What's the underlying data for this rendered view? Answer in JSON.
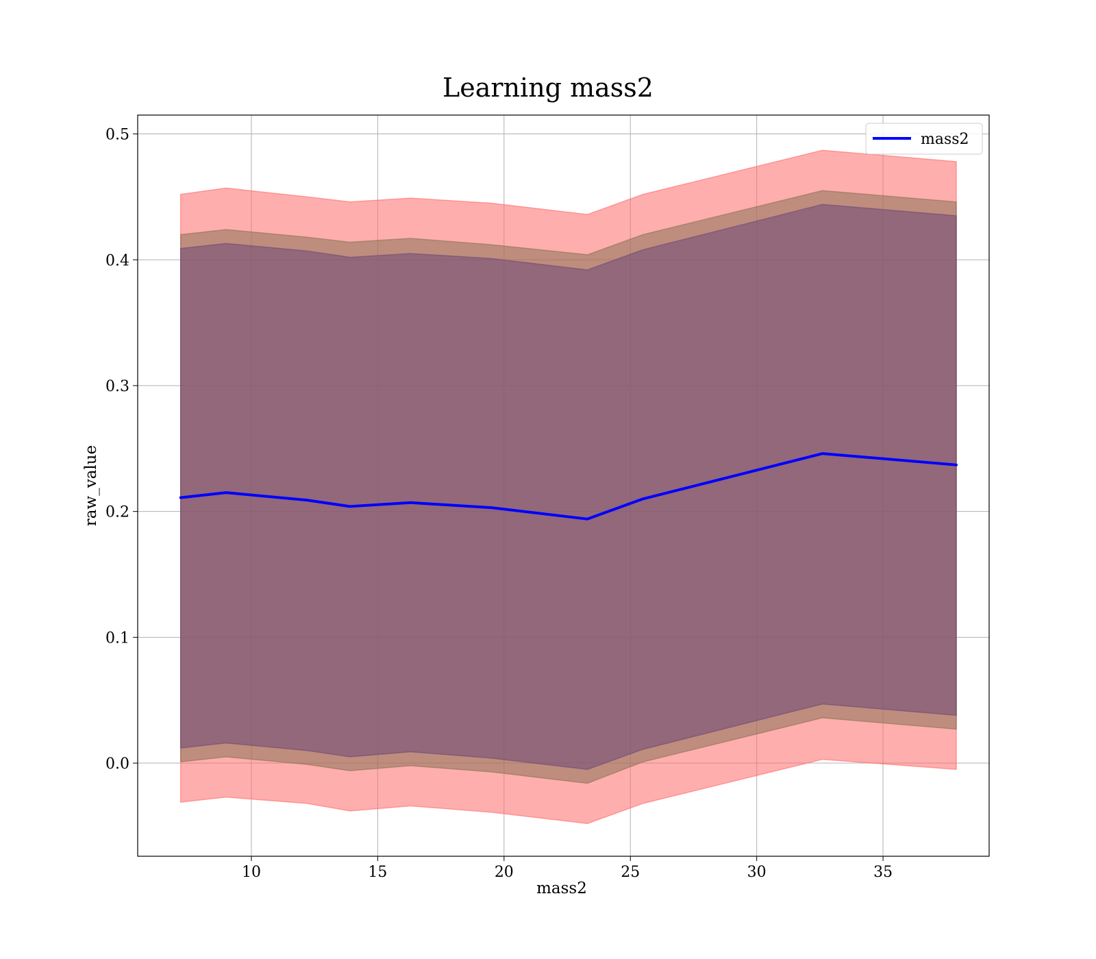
{
  "chart_data": {
    "type": "line",
    "title": "Learning mass2",
    "xlabel": "mass2",
    "ylabel": "raw_value",
    "xlim": [
      5.5,
      39.2
    ],
    "ylim": [
      -0.074,
      0.515
    ],
    "xticks": [
      10,
      15,
      20,
      25,
      30,
      35
    ],
    "yticks": [
      0.0,
      0.1,
      0.2,
      0.3,
      0.4,
      0.5
    ],
    "xtick_labels": [
      "10",
      "15",
      "20",
      "25",
      "30",
      "35"
    ],
    "ytick_labels": [
      "0.0",
      "0.1",
      "0.2",
      "0.3",
      "0.4",
      "0.5"
    ],
    "grid": true,
    "legend_position": "top-right",
    "x": [
      7.2,
      9.0,
      12.2,
      13.9,
      16.3,
      19.5,
      23.3,
      25.5,
      32.6,
      37.9
    ],
    "series": [
      {
        "name": "mass2",
        "color": "#0000ff",
        "values": [
          0.211,
          0.215,
          0.209,
          0.204,
          0.207,
          0.203,
          0.194,
          0.21,
          0.246,
          0.237
        ]
      }
    ],
    "bands": [
      {
        "color": "#ff6b6b",
        "lower": [
          -0.031,
          -0.027,
          -0.032,
          -0.038,
          -0.034,
          -0.039,
          -0.048,
          -0.032,
          0.003,
          -0.005
        ],
        "upper": [
          0.452,
          0.457,
          0.45,
          0.446,
          0.449,
          0.445,
          0.436,
          0.452,
          0.487,
          0.478
        ]
      },
      {
        "color": "#8b7355",
        "lower": [
          0.001,
          0.005,
          -0.001,
          -0.006,
          -0.002,
          -0.007,
          -0.016,
          0.001,
          0.036,
          0.027
        ],
        "upper": [
          0.42,
          0.424,
          0.418,
          0.414,
          0.417,
          0.412,
          0.404,
          0.42,
          0.455,
          0.446
        ]
      },
      {
        "color": "#6e4a78",
        "lower": [
          0.012,
          0.016,
          0.01,
          0.005,
          0.009,
          0.004,
          -0.005,
          0.011,
          0.047,
          0.038
        ],
        "upper": [
          0.409,
          0.413,
          0.407,
          0.402,
          0.405,
          0.401,
          0.392,
          0.408,
          0.444,
          0.435
        ]
      }
    ]
  }
}
